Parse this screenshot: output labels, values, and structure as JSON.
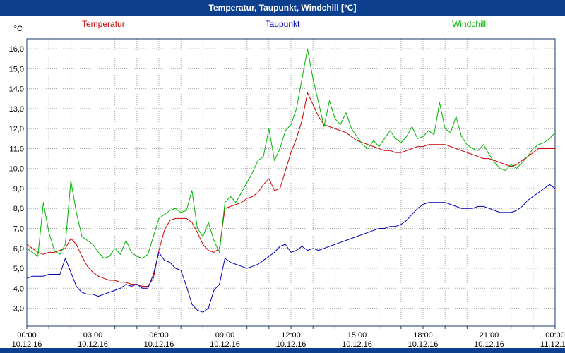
{
  "window": {
    "title": "Temperatur, Taupunkt, Windchill [°C]"
  },
  "colors": {
    "titlebar": "#0d3f8f",
    "frame": "#1a3a6b",
    "grid": "#a8a8a8",
    "temperatur": "#cc0000",
    "taupunkt": "#0000bb",
    "windchill": "#00b400"
  },
  "chart_data": {
    "type": "line",
    "title": "Temperatur, Taupunkt, Windchill [°C]",
    "unit_label": "°C",
    "legend_position": "top",
    "grid": {
      "horizontal_step": 1,
      "vertical_step_hours": 1,
      "style": "dotted"
    },
    "x": {
      "start": 0,
      "step_hours": 0.25,
      "count": 97,
      "range_hours": [
        0,
        24
      ]
    },
    "ylim": [
      2.1,
      16.5
    ],
    "yticks": [
      {
        "value": 16,
        "label": "16,0"
      },
      {
        "value": 15,
        "label": "15,0"
      },
      {
        "value": 14,
        "label": "14,0"
      },
      {
        "value": 13,
        "label": "13,0"
      },
      {
        "value": 12,
        "label": "12,0"
      },
      {
        "value": 11,
        "label": "11,0"
      },
      {
        "value": 10,
        "label": "10,0"
      },
      {
        "value": 9,
        "label": "9,0"
      },
      {
        "value": 8,
        "label": "8,0"
      },
      {
        "value": 7,
        "label": "7,0"
      },
      {
        "value": 6,
        "label": "6,0"
      },
      {
        "value": 5,
        "label": "5,0"
      },
      {
        "value": 4,
        "label": "4,0"
      },
      {
        "value": 3,
        "label": "3,0"
      }
    ],
    "xticks": [
      {
        "hour": 0,
        "time": "00:00",
        "date": "10.12.16"
      },
      {
        "hour": 3,
        "time": "03:00",
        "date": "10.12.16"
      },
      {
        "hour": 6,
        "time": "06:00",
        "date": "10.12.16"
      },
      {
        "hour": 9,
        "time": "09:00",
        "date": "10.12.16"
      },
      {
        "hour": 12,
        "time": "12:00",
        "date": "10.12.16"
      },
      {
        "hour": 15,
        "time": "15:00",
        "date": "10.12.16"
      },
      {
        "hour": 18,
        "time": "18:00",
        "date": "10.12.16"
      },
      {
        "hour": 21,
        "time": "21:00",
        "date": "10.12.16"
      },
      {
        "hour": 24,
        "time": "00:00",
        "date": "11.12.16"
      }
    ],
    "series": [
      {
        "name": "Temperatur",
        "color": "#cc0000",
        "values": [
          6.2,
          6.0,
          5.8,
          5.7,
          5.8,
          5.8,
          5.9,
          6.0,
          6.5,
          6.2,
          5.6,
          5.1,
          4.8,
          4.6,
          4.5,
          4.4,
          4.4,
          4.3,
          4.3,
          4.2,
          4.2,
          4.1,
          4.1,
          4.5,
          5.9,
          6.9,
          7.4,
          7.5,
          7.5,
          7.5,
          7.3,
          6.8,
          6.2,
          5.9,
          5.8,
          6.0,
          8.0,
          8.1,
          8.2,
          8.3,
          8.5,
          8.6,
          8.8,
          9.2,
          9.5,
          8.9,
          9.0,
          9.9,
          10.8,
          11.5,
          12.4,
          13.8,
          13.2,
          12.6,
          12.2,
          12.1,
          12.0,
          11.9,
          11.8,
          11.6,
          11.4,
          11.3,
          11.2,
          11.1,
          11.0,
          10.9,
          10.9,
          10.8,
          10.8,
          10.9,
          11.0,
          11.1,
          11.1,
          11.2,
          11.2,
          11.2,
          11.2,
          11.1,
          11.0,
          10.9,
          10.8,
          10.7,
          10.6,
          10.5,
          10.5,
          10.4,
          10.3,
          10.2,
          10.1,
          10.2,
          10.4,
          10.6,
          10.8,
          11.0,
          11.0,
          11.0,
          11.0
        ]
      },
      {
        "name": "Taupunkt",
        "color": "#0000bb",
        "values": [
          4.5,
          4.6,
          4.6,
          4.6,
          4.7,
          4.7,
          4.7,
          5.5,
          4.8,
          4.1,
          3.8,
          3.7,
          3.7,
          3.6,
          3.7,
          3.8,
          3.9,
          4.0,
          4.2,
          4.1,
          4.2,
          4.0,
          4.0,
          4.7,
          5.8,
          5.4,
          5.3,
          5.0,
          4.9,
          4.1,
          3.2,
          2.9,
          2.8,
          3.0,
          3.9,
          4.2,
          5.5,
          5.3,
          5.2,
          5.1,
          5.0,
          5.1,
          5.2,
          5.4,
          5.6,
          5.8,
          6.1,
          6.2,
          5.8,
          5.9,
          6.1,
          5.9,
          6.0,
          5.9,
          6.0,
          6.1,
          6.2,
          6.3,
          6.4,
          6.5,
          6.6,
          6.7,
          6.8,
          6.9,
          7.0,
          7.0,
          7.1,
          7.1,
          7.2,
          7.4,
          7.7,
          8.0,
          8.2,
          8.3,
          8.3,
          8.3,
          8.3,
          8.2,
          8.1,
          8.0,
          8.0,
          8.0,
          8.1,
          8.1,
          8.0,
          7.9,
          7.8,
          7.8,
          7.8,
          7.9,
          8.1,
          8.4,
          8.6,
          8.8,
          9.0,
          9.2,
          9.0
        ]
      },
      {
        "name": "Windchill",
        "color": "#00b400",
        "values": [
          6.0,
          5.8,
          5.6,
          8.3,
          6.8,
          5.9,
          5.7,
          6.2,
          9.4,
          7.8,
          6.6,
          6.4,
          6.2,
          5.8,
          5.5,
          5.6,
          6.0,
          5.7,
          6.4,
          5.8,
          5.6,
          5.5,
          5.7,
          6.6,
          7.5,
          7.7,
          7.9,
          8.0,
          7.8,
          7.9,
          8.9,
          7.0,
          6.6,
          7.3,
          6.4,
          5.8,
          8.3,
          8.6,
          8.3,
          8.8,
          9.3,
          9.8,
          10.4,
          10.6,
          12.0,
          10.4,
          11.0,
          11.9,
          12.2,
          13.0,
          14.5,
          16.0,
          14.5,
          13.3,
          12.1,
          13.4,
          12.5,
          12.2,
          12.8,
          12.0,
          11.6,
          11.2,
          11.0,
          11.4,
          11.1,
          11.5,
          11.9,
          11.5,
          11.3,
          11.6,
          12.1,
          11.5,
          11.6,
          11.9,
          11.7,
          13.3,
          12.0,
          11.8,
          12.6,
          11.6,
          11.2,
          11.0,
          10.9,
          11.2,
          10.7,
          10.3,
          10.0,
          9.9,
          10.2,
          10.0,
          10.3,
          10.6,
          11.0,
          11.2,
          11.3,
          11.5,
          11.8
        ]
      }
    ]
  }
}
